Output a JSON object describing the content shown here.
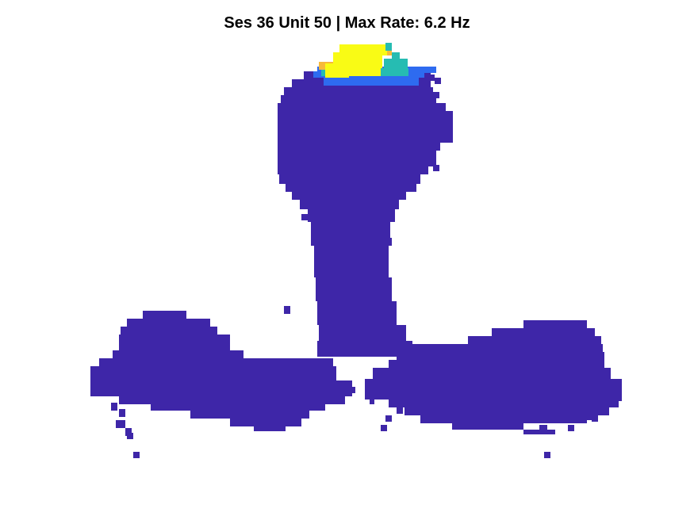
{
  "chart_data": {
    "type": "heatmap",
    "title": "Ses 36 Unit 50 | Max Rate: 6.2 Hz",
    "max_rate_hz": 6.2,
    "colormap": "parula",
    "axes_visible": false,
    "colors": {
      "background": "#ffffff",
      "low": "#3e26a8",
      "mid_low": "#2e6bf0",
      "mid": "#26bcb2",
      "mid_high": "#f7b93a",
      "high": "#f9fb15"
    },
    "field_peak_rate_hz": 6.2,
    "baseline_rate_hz": 0.0
  }
}
